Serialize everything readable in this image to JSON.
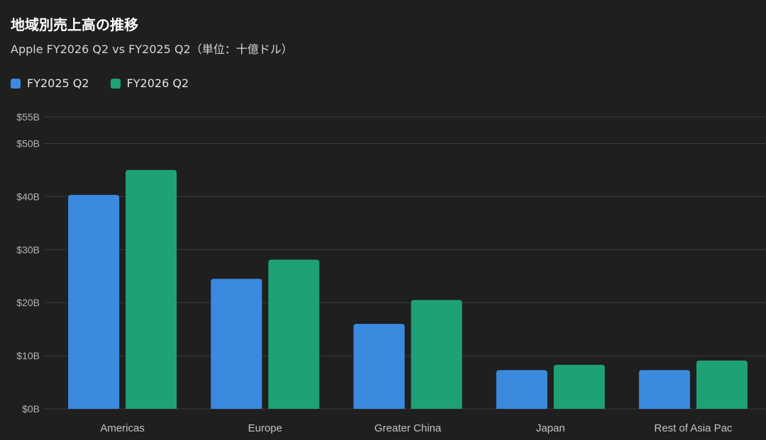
{
  "title": "地域別売上高の推移",
  "subtitle": "Apple FY2026 Q2 vs FY2025 Q2（単位：十億ドル）",
  "colors": {
    "background": "#1f1f1f",
    "grid": "#3a3a3a",
    "fy2025": "#3a8be0",
    "fy2026": "#1fa176"
  },
  "chart_data": {
    "type": "bar",
    "categories": [
      "Americas",
      "Europe",
      "Greater China",
      "Japan",
      "Rest of Asia Pac"
    ],
    "series": [
      {
        "name": "FY2025 Q2",
        "color": "#3a8be0",
        "values": [
          40.3,
          24.5,
          16.0,
          7.3,
          7.3
        ]
      },
      {
        "name": "FY2026 Q2",
        "color": "#1fa176",
        "values": [
          45.0,
          28.1,
          20.5,
          8.3,
          9.1
        ]
      }
    ],
    "y_ticks": [
      0,
      10,
      20,
      30,
      40,
      50,
      55
    ],
    "y_tick_labels": [
      "$0B",
      "$10B",
      "$20B",
      "$30B",
      "$40B",
      "$50B",
      "$55B"
    ],
    "ylim": [
      0,
      55
    ],
    "grid": true,
    "legend_position": "top-left"
  }
}
